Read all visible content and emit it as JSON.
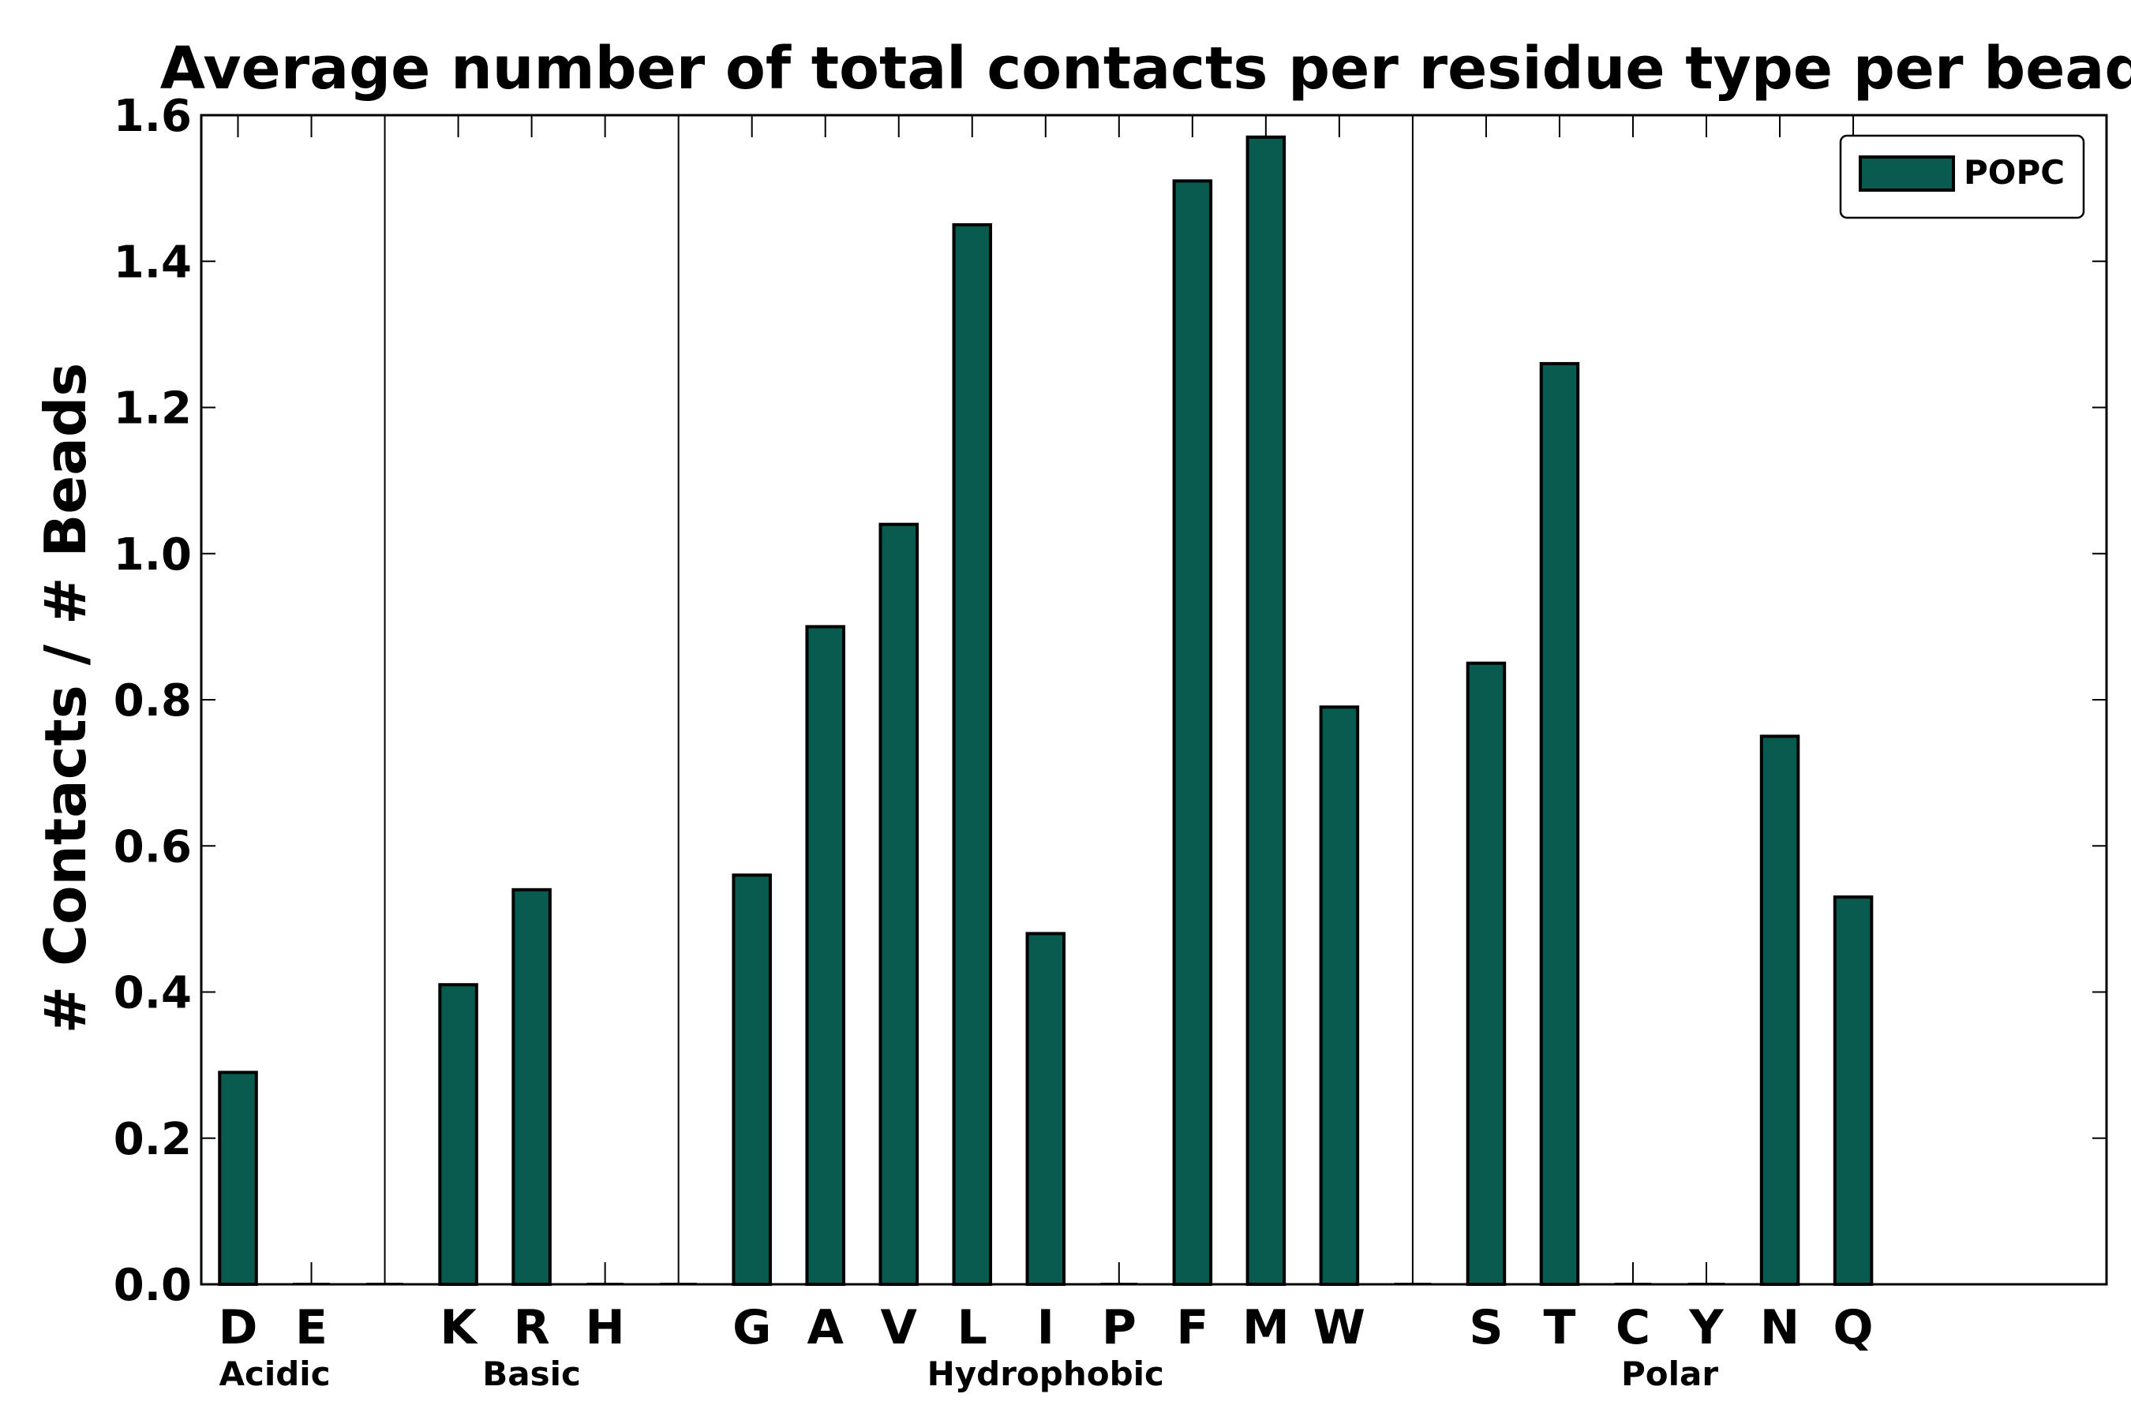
{
  "chart_data": {
    "type": "bar",
    "title": "Average number of total contacts per residue type per bead",
    "xlabel": "",
    "ylabel": "# Contacts / # Beads",
    "ylim": [
      0,
      1.6
    ],
    "yticks": [
      "0.0",
      "0.2",
      "0.4",
      "0.6",
      "0.8",
      "1.0",
      "1.2",
      "1.4",
      "1.6"
    ],
    "legend_position": "top-right",
    "bar_color": "#075B4F",
    "categories": [
      "D",
      "E",
      "K",
      "R",
      "H",
      "G",
      "A",
      "V",
      "L",
      "I",
      "P",
      "F",
      "M",
      "W",
      "S",
      "T",
      "C",
      "Y",
      "N",
      "Q"
    ],
    "series": [
      {
        "name": "POPC",
        "values": [
          0.29,
          0.0,
          0.41,
          0.54,
          0.0,
          0.56,
          0.9,
          1.04,
          1.45,
          0.48,
          0.0,
          1.51,
          1.57,
          0.79,
          0.85,
          1.26,
          0.0,
          0.0,
          0.75,
          0.53
        ]
      }
    ],
    "groups": [
      {
        "name": "Acidic",
        "categories": [
          "D",
          "E"
        ]
      },
      {
        "name": "Basic",
        "categories": [
          "K",
          "R",
          "H"
        ]
      },
      {
        "name": "Hydrophobic",
        "categories": [
          "G",
          "A",
          "V",
          "L",
          "I",
          "P",
          "F",
          "M",
          "W"
        ]
      },
      {
        "name": "Polar",
        "categories": [
          "S",
          "T",
          "C",
          "Y",
          "N",
          "Q"
        ]
      }
    ]
  }
}
